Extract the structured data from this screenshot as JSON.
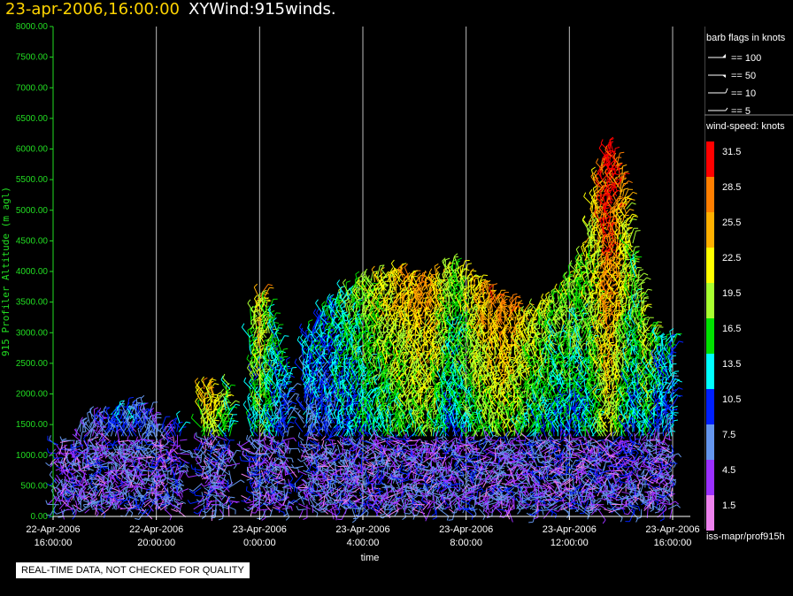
{
  "header": {
    "datetime": "23-apr-2006,16:00:00",
    "plot_name": "XYWind:915winds."
  },
  "legend": {
    "barb_title": "barb flags in knots",
    "barbs": [
      "== 100",
      "== 50",
      "== 10",
      "== 5"
    ],
    "speed_title": "wind-speed: knots",
    "speed_bins": [
      {
        "label": "31.5",
        "color": "#ff0000"
      },
      {
        "label": "28.5",
        "color": "#ff7f00"
      },
      {
        "label": "25.5",
        "color": "#ffb000"
      },
      {
        "label": "22.5",
        "color": "#ffff00"
      },
      {
        "label": "19.5",
        "color": "#a8ff30"
      },
      {
        "label": "16.5",
        "color": "#00e000"
      },
      {
        "label": "13.5",
        "color": "#00ffff"
      },
      {
        "label": "10.5",
        "color": "#0020ff"
      },
      {
        "label": "7.5",
        "color": "#6495ed"
      },
      {
        "label": "4.5",
        "color": "#9b30ff"
      },
      {
        "label": "1.5",
        "color": "#ee82ee"
      }
    ],
    "source": "iss-mapr/prof915h"
  },
  "footer_note": "REAL-TIME DATA, NOT CHECKED FOR QUALITY",
  "chart_data": {
    "type": "scatter",
    "title": "23-apr-2006,16:00:00  XYWind:915winds.",
    "xlabel": "time",
    "ylabel": "915 Profiler Altitude (m agl)",
    "ylim": [
      0,
      8000
    ],
    "yticks": [
      "0.00",
      "500.00",
      "1000.00",
      "1500.00",
      "2000.00",
      "2500.00",
      "3000.00",
      "3500.00",
      "4000.00",
      "4500.00",
      "5000.00",
      "5500.00",
      "6000.00",
      "6500.00",
      "7000.00",
      "7500.00",
      "8000.00"
    ],
    "xticks": [
      {
        "date": "22-Apr-2006",
        "time": "16:00:00"
      },
      {
        "date": "22-Apr-2006",
        "time": "20:00:00"
      },
      {
        "date": "23-Apr-2006",
        "time": "0:00:00"
      },
      {
        "date": "23-Apr-2006",
        "time": "4:00:00"
      },
      {
        "date": "23-Apr-2006",
        "time": "8:00:00"
      },
      {
        "date": "23-Apr-2006",
        "time": "12:00:00"
      },
      {
        "date": "23-Apr-2006",
        "time": "16:00:00"
      }
    ],
    "xlim_hours": [
      0,
      24
    ],
    "grid": "vertical",
    "series": [
      {
        "hours": [
          0.5,
          1.5,
          2.5,
          3.5,
          4.5
        ],
        "top_m": [
          1200,
          1600,
          1700,
          1800,
          1300
        ],
        "speed_kt": [
          5,
          6,
          9,
          8,
          6
        ]
      },
      {
        "hours": [
          6,
          6.5
        ],
        "top_m": [
          2200,
          1800
        ],
        "speed_kt": [
          23,
          18
        ]
      },
      {
        "hours": [
          7.5,
          8,
          8.5,
          9
        ],
        "top_m": [
          3000,
          3700,
          3300,
          2400
        ],
        "speed_kt": [
          12,
          22,
          14,
          11
        ]
      },
      {
        "hours": [
          10.5,
          11.5,
          12.5,
          13.5,
          14.5
        ],
        "top_m": [
          3400,
          3700,
          3900,
          4000,
          3800
        ],
        "speed_kt": [
          12,
          15,
          19,
          22,
          24
        ]
      },
      {
        "hours": [
          15.5,
          16.5,
          17.5,
          18.5,
          19.5
        ],
        "top_m": [
          4100,
          3800,
          3500,
          3300,
          3600
        ],
        "speed_kt": [
          16,
          22,
          25,
          19,
          17
        ]
      },
      {
        "hours": [
          20.5,
          21,
          21.5,
          22,
          22.5,
          23,
          23.5
        ],
        "top_m": [
          4200,
          5500,
          6100,
          5700,
          4300,
          3200,
          2900
        ],
        "speed_kt": [
          17,
          22,
          31,
          24,
          15,
          20,
          12
        ]
      }
    ]
  }
}
